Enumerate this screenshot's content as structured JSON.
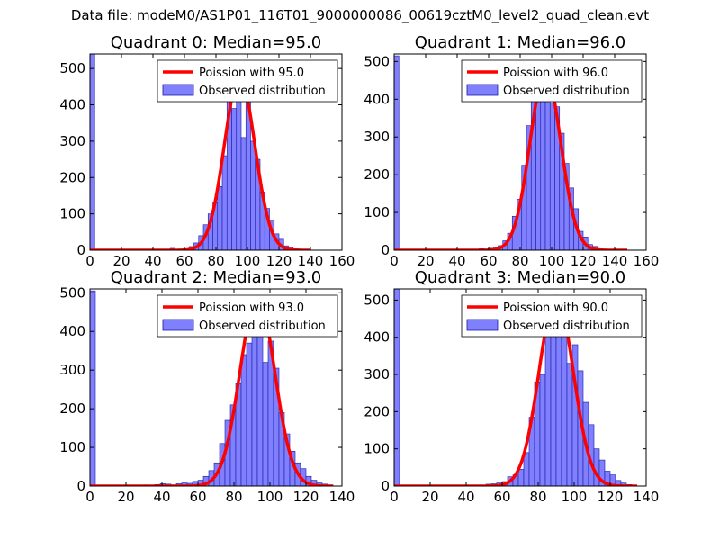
{
  "figure": {
    "title": "Data file: modeM0/AS1P01_116T01_9000000086_00619cztM0_level2_quad_clean.evt"
  },
  "colors": {
    "bar_fill": "#8080ff",
    "bar_edge": "#1a1aa6",
    "poisson_line": "#ff0000",
    "axes": "#000000"
  },
  "chart_data": [
    {
      "type": "bar",
      "title": "Quadrant 0: Median=95.0",
      "xlim": [
        0,
        160
      ],
      "ylim": [
        0,
        540
      ],
      "xticks": [
        0,
        20,
        40,
        60,
        80,
        100,
        120,
        140,
        160
      ],
      "yticks": [
        0,
        100,
        200,
        300,
        400,
        500
      ],
      "bin_width": 3,
      "bins": [
        [
          0,
          540
        ],
        [
          51,
          5
        ],
        [
          57,
          3
        ],
        [
          60,
          4
        ],
        [
          63,
          10
        ],
        [
          66,
          20
        ],
        [
          69,
          40
        ],
        [
          72,
          70
        ],
        [
          75,
          100
        ],
        [
          78,
          130
        ],
        [
          81,
          175
        ],
        [
          84,
          260
        ],
        [
          87,
          420
        ],
        [
          90,
          390
        ],
        [
          93,
          500
        ],
        [
          96,
          310
        ],
        [
          99,
          440
        ],
        [
          102,
          300
        ],
        [
          105,
          250
        ],
        [
          108,
          160
        ],
        [
          111,
          115
        ],
        [
          114,
          80
        ],
        [
          117,
          45
        ],
        [
          120,
          30
        ],
        [
          123,
          12
        ],
        [
          126,
          8
        ],
        [
          129,
          4
        ],
        [
          132,
          3
        ],
        [
          135,
          2
        ]
      ],
      "poisson_mean": 95.0,
      "poisson_peak": 475,
      "line_xrange": [
        0,
        140
      ],
      "legend": [
        "Poission with 95.0",
        "Observed distribution"
      ]
    },
    {
      "type": "bar",
      "title": "Quadrant 1: Median=96.0",
      "xlim": [
        0,
        160
      ],
      "ylim": [
        0,
        520
      ],
      "xticks": [
        0,
        20,
        40,
        60,
        80,
        100,
        120,
        140,
        160
      ],
      "yticks": [
        0,
        100,
        200,
        300,
        400,
        500
      ],
      "bin_width": 3,
      "bins": [
        [
          0,
          515
        ],
        [
          54,
          4
        ],
        [
          60,
          5
        ],
        [
          63,
          6
        ],
        [
          66,
          12
        ],
        [
          69,
          25
        ],
        [
          72,
          45
        ],
        [
          75,
          90
        ],
        [
          78,
          135
        ],
        [
          81,
          225
        ],
        [
          84,
          330
        ],
        [
          87,
          420
        ],
        [
          90,
          440
        ],
        [
          93,
          480
        ],
        [
          96,
          440
        ],
        [
          99,
          390
        ],
        [
          102,
          380
        ],
        [
          105,
          310
        ],
        [
          108,
          230
        ],
        [
          111,
          165
        ],
        [
          114,
          110
        ],
        [
          117,
          50
        ],
        [
          120,
          35
        ],
        [
          123,
          15
        ],
        [
          126,
          10
        ],
        [
          129,
          4
        ],
        [
          132,
          3
        ],
        [
          138,
          2
        ]
      ],
      "poisson_mean": 96.0,
      "poisson_peak": 470,
      "line_xrange": [
        0,
        148
      ],
      "legend": [
        "Poission with 96.0",
        "Observed distribution"
      ]
    },
    {
      "type": "bar",
      "title": "Quadrant 2: Median=93.0",
      "xlim": [
        0,
        140
      ],
      "ylim": [
        0,
        510
      ],
      "xticks": [
        0,
        20,
        40,
        60,
        80,
        100,
        120,
        140
      ],
      "yticks": [
        0,
        100,
        200,
        300,
        400,
        500
      ],
      "bin_width": 3,
      "bins": [
        [
          0,
          505
        ],
        [
          30,
          3
        ],
        [
          36,
          4
        ],
        [
          39,
          6
        ],
        [
          42,
          5
        ],
        [
          45,
          3
        ],
        [
          48,
          6
        ],
        [
          51,
          8
        ],
        [
          54,
          7
        ],
        [
          57,
          12
        ],
        [
          60,
          15
        ],
        [
          63,
          25
        ],
        [
          66,
          40
        ],
        [
          69,
          60
        ],
        [
          72,
          110
        ],
        [
          75,
          170
        ],
        [
          78,
          210
        ],
        [
          81,
          265
        ],
        [
          84,
          340
        ],
        [
          87,
          370
        ],
        [
          90,
          430
        ],
        [
          93,
          460
        ],
        [
          96,
          320
        ],
        [
          99,
          375
        ],
        [
          102,
          305
        ],
        [
          105,
          190
        ],
        [
          108,
          135
        ],
        [
          111,
          90
        ],
        [
          114,
          60
        ],
        [
          117,
          45
        ],
        [
          120,
          25
        ],
        [
          123,
          15
        ],
        [
          126,
          8
        ],
        [
          129,
          5
        ],
        [
          132,
          3
        ]
      ],
      "poisson_mean": 93.0,
      "poisson_peak": 490,
      "line_xrange": [
        0,
        135
      ],
      "legend": [
        "Poission with 93.0",
        "Observed distribution"
      ]
    },
    {
      "type": "bar",
      "title": "Quadrant 3: Median=90.0",
      "xlim": [
        0,
        140
      ],
      "ylim": [
        0,
        530
      ],
      "xticks": [
        0,
        20,
        40,
        60,
        80,
        100,
        120,
        140
      ],
      "yticks": [
        0,
        100,
        200,
        300,
        400,
        500
      ],
      "bin_width": 3,
      "bins": [
        [
          0,
          530
        ],
        [
          51,
          5
        ],
        [
          54,
          6
        ],
        [
          57,
          10
        ],
        [
          60,
          12
        ],
        [
          63,
          25
        ],
        [
          66,
          30
        ],
        [
          69,
          45
        ],
        [
          72,
          90
        ],
        [
          75,
          185
        ],
        [
          78,
          280
        ],
        [
          81,
          300
        ],
        [
          84,
          420
        ],
        [
          87,
          490
        ],
        [
          90,
          455
        ],
        [
          93,
          470
        ],
        [
          96,
          330
        ],
        [
          99,
          380
        ],
        [
          102,
          310
        ],
        [
          105,
          225
        ],
        [
          108,
          165
        ],
        [
          111,
          100
        ],
        [
          114,
          70
        ],
        [
          117,
          40
        ],
        [
          120,
          30
        ],
        [
          123,
          15
        ],
        [
          126,
          8
        ],
        [
          129,
          4
        ]
      ],
      "poisson_mean": 90.0,
      "poisson_peak": 510,
      "line_xrange": [
        0,
        135
      ],
      "legend": [
        "Poission with 90.0",
        "Observed distribution"
      ]
    }
  ]
}
